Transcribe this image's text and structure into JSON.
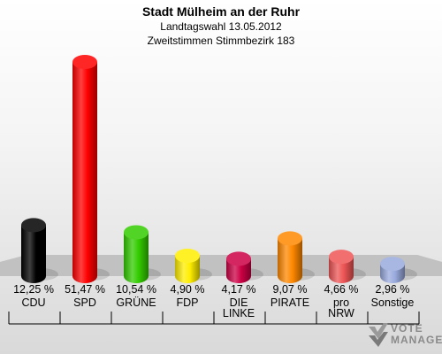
{
  "header": {
    "title": "Stadt Mülheim an der Ruhr",
    "subtitle_1": "Landtagswahl 13.05.2012",
    "subtitle_2": "Zweitstimmen Stimmbezirk 183"
  },
  "logo": {
    "line1": "VOTE",
    "line2": "MANAGER",
    "icon": "checkmark-x-icon"
  },
  "chart_data": {
    "type": "bar",
    "title": "Stadt Mülheim an der Ruhr",
    "subtitle": "Landtagswahl 13.05.2012 · Zweitstimmen Stimmbezirk 183",
    "categories": [
      "CDU",
      "SPD",
      "GRÜNE",
      "FDP",
      "DIE LINKE",
      "PIRATE",
      "pro NRW",
      "Sonstige"
    ],
    "category_lines": [
      [
        "CDU"
      ],
      [
        "SPD"
      ],
      [
        "GRÜNE"
      ],
      [
        "FDP"
      ],
      [
        "DIE",
        "LINKE"
      ],
      [
        "PIRATE"
      ],
      [
        "pro",
        "NRW"
      ],
      [
        "Sonstige"
      ]
    ],
    "values": [
      12.25,
      51.47,
      10.54,
      4.9,
      4.17,
      9.07,
      4.66,
      2.96
    ],
    "value_labels": [
      "12,25 %",
      "51,47 %",
      "10,54 %",
      "4,90 %",
      "4,17 %",
      "9,07 %",
      "4,66 %",
      "2,96 %"
    ],
    "colors": [
      "#000000",
      "#ff0000",
      "#33cc00",
      "#ffee00",
      "#cc0044",
      "#ff8800",
      "#ee5555",
      "#99aadd"
    ],
    "ylim": [
      0,
      55
    ],
    "grid": false,
    "legend": "none"
  }
}
